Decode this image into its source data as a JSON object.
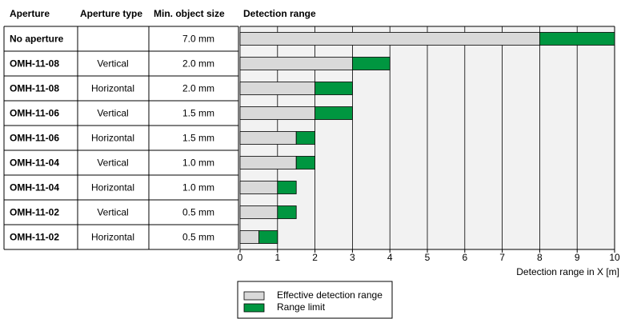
{
  "table": {
    "headers": [
      "Aperture",
      "Aperture type",
      "Min. object size"
    ],
    "rows": [
      [
        "No aperture",
        "",
        "7.0 mm"
      ],
      [
        "OMH-11-08",
        "Vertical",
        "2.0 mm"
      ],
      [
        "OMH-11-08",
        "Horizontal",
        "2.0 mm"
      ],
      [
        "OMH-11-06",
        "Vertical",
        "1.5 mm"
      ],
      [
        "OMH-11-06",
        "Horizontal",
        "1.5 mm"
      ],
      [
        "OMH-11-04",
        "Vertical",
        "1.0 mm"
      ],
      [
        "OMH-11-04",
        "Horizontal",
        "1.0 mm"
      ],
      [
        "OMH-11-02",
        "Vertical",
        "0.5 mm"
      ],
      [
        "OMH-11-02",
        "Horizontal",
        "0.5 mm"
      ]
    ]
  },
  "chart_data": {
    "type": "bar",
    "orientation": "horizontal",
    "stacked": true,
    "title": "Detection range",
    "xlabel": "Detection range in X [m]",
    "xlim": [
      0,
      10
    ],
    "xticks": [
      0,
      1,
      2,
      3,
      4,
      5,
      6,
      7,
      8,
      9,
      10
    ],
    "grid": true,
    "series": [
      {
        "name": "Effective detection range",
        "color": "#d9d9d9",
        "values": [
          8,
          3,
          2,
          2,
          1.5,
          1.5,
          1,
          1,
          0.5
        ]
      },
      {
        "name": "Range limit",
        "color": "#009640",
        "values": [
          2,
          1,
          1,
          1,
          0.5,
          0.5,
          0.5,
          0.5,
          0.5
        ]
      }
    ]
  }
}
